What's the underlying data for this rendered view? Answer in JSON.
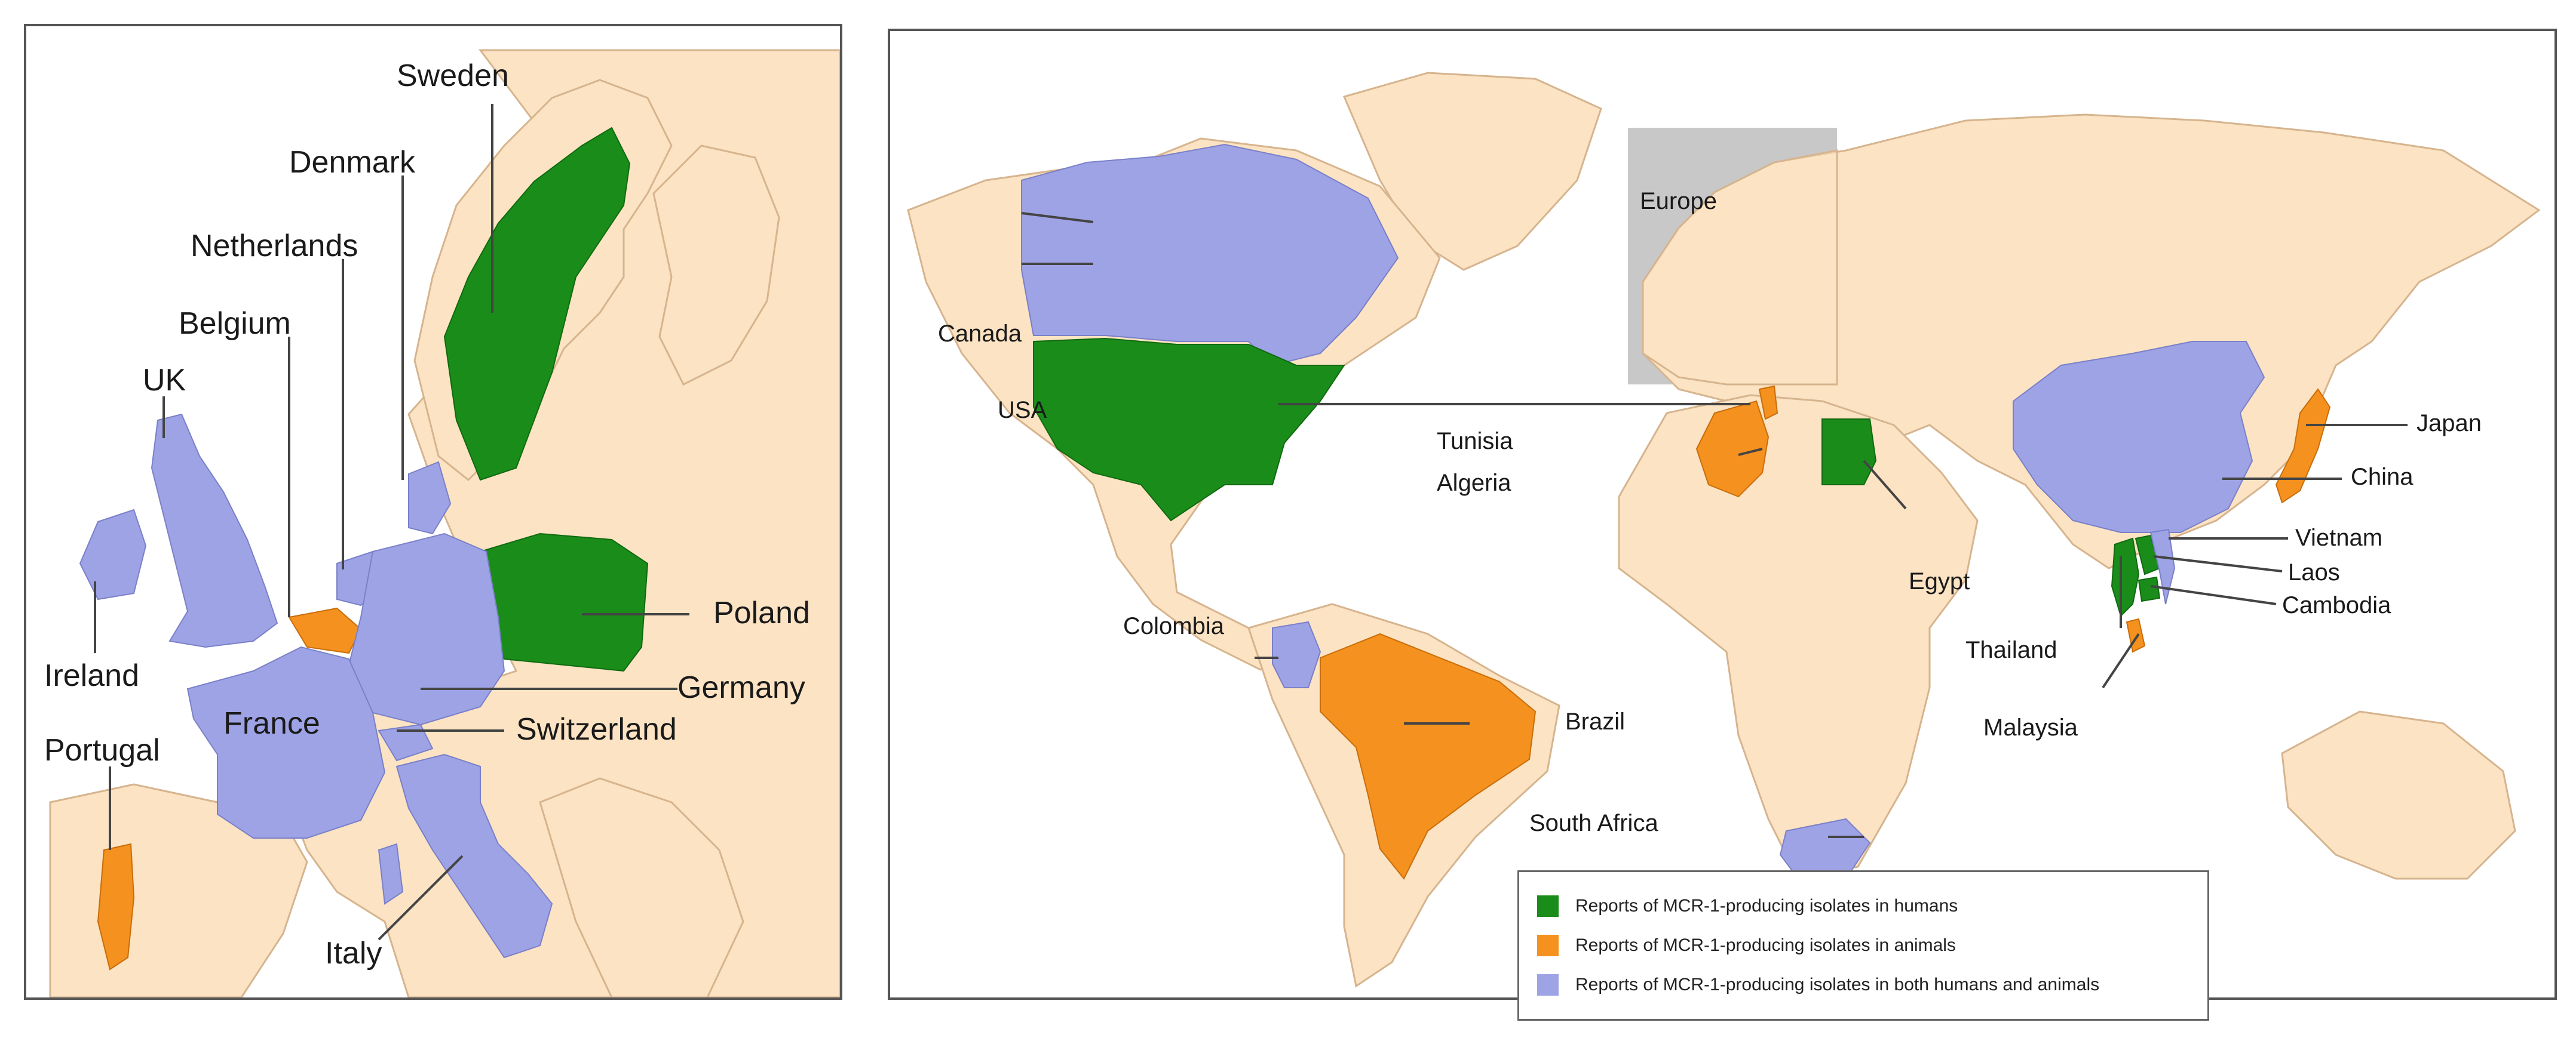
{
  "colors": {
    "humans": "#1a8c1a",
    "animals": "#f5911e",
    "both": "#9ea3e6",
    "land": "#fbe3c3",
    "europe_box": "#c8c8c8"
  },
  "europe_map": {
    "labels": {
      "sweden": "Sweden",
      "denmark": "Denmark",
      "netherlands": "Netherlands",
      "belgium": "Belgium",
      "uk": "UK",
      "ireland": "Ireland",
      "france": "France",
      "portugal": "Portugal",
      "poland": "Poland",
      "germany": "Germany",
      "switzerland": "Switzerland",
      "italy": "Italy"
    },
    "countries": [
      {
        "name": "Sweden",
        "category": "humans"
      },
      {
        "name": "Poland",
        "category": "humans"
      },
      {
        "name": "Belgium",
        "category": "animals"
      },
      {
        "name": "Portugal",
        "category": "animals"
      },
      {
        "name": "UK",
        "category": "both"
      },
      {
        "name": "Ireland",
        "category": "both"
      },
      {
        "name": "Denmark",
        "category": "both"
      },
      {
        "name": "Netherlands",
        "category": "both"
      },
      {
        "name": "France",
        "category": "both"
      },
      {
        "name": "Germany",
        "category": "both"
      },
      {
        "name": "Switzerland",
        "category": "both"
      },
      {
        "name": "Italy",
        "category": "both"
      }
    ]
  },
  "world_map": {
    "europe_box_label": "Europe",
    "labels": {
      "canada": "Canada",
      "usa": "USA",
      "colombia": "Colombia",
      "brazil": "Brazil",
      "tunisia": "Tunisia",
      "algeria": "Algeria",
      "egypt": "Egypt",
      "south_africa": "South Africa",
      "japan": "Japan",
      "china": "China",
      "vietnam": "Vietnam",
      "laos": "Laos",
      "cambodia": "Cambodia",
      "thailand": "Thailand",
      "malaysia": "Malaysia"
    },
    "countries": [
      {
        "name": "USA",
        "category": "humans"
      },
      {
        "name": "Egypt",
        "category": "humans"
      },
      {
        "name": "Thailand",
        "category": "humans"
      },
      {
        "name": "Laos",
        "category": "humans"
      },
      {
        "name": "Cambodia",
        "category": "humans"
      },
      {
        "name": "Brazil",
        "category": "animals"
      },
      {
        "name": "Algeria",
        "category": "animals"
      },
      {
        "name": "Tunisia",
        "category": "animals"
      },
      {
        "name": "Japan",
        "category": "animals"
      },
      {
        "name": "Malaysia",
        "category": "animals"
      },
      {
        "name": "Canada",
        "category": "both"
      },
      {
        "name": "Colombia",
        "category": "both"
      },
      {
        "name": "China",
        "category": "both"
      },
      {
        "name": "Vietnam",
        "category": "both"
      },
      {
        "name": "South Africa",
        "category": "both"
      }
    ]
  },
  "legend": {
    "items": [
      {
        "label": "Reports of MCR-1-producing isolates in humans",
        "color": "#1a8c1a"
      },
      {
        "label": "Reports of MCR-1-producing isolates in animals",
        "color": "#f5911e"
      },
      {
        "label": "Reports of MCR-1-producing isolates in both humans and animals",
        "color": "#9ea3e6"
      }
    ]
  }
}
